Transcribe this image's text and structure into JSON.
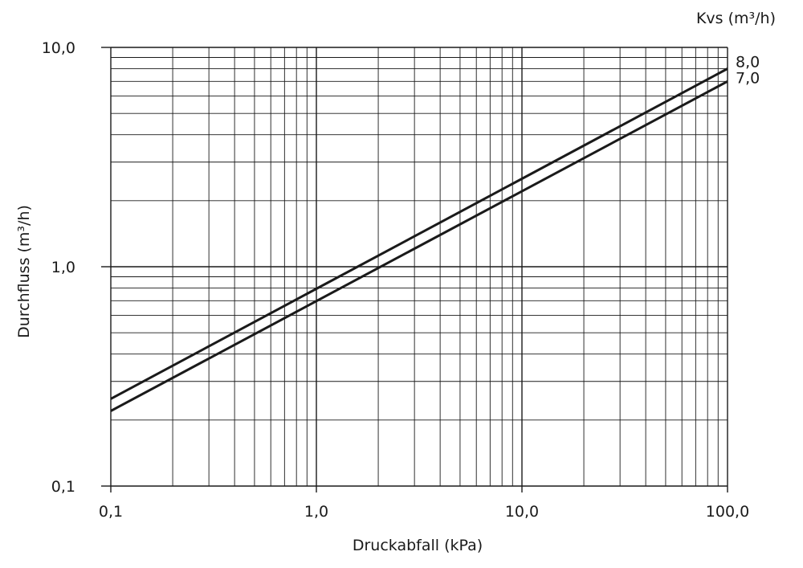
{
  "chart_data": {
    "type": "line",
    "x_scale": "log",
    "y_scale": "log",
    "xlim": [
      0.1,
      100.0
    ],
    "ylim": [
      0.1,
      10.0
    ],
    "grid": true,
    "xlabel": "Druckabfall (kPa)",
    "ylabel": "Durchfluss (m³/h)",
    "x_tick_labels": [
      "0,1",
      "1,0",
      "10,0",
      "100,0"
    ],
    "x_ticks": [
      0.1,
      1.0,
      10.0,
      100.0
    ],
    "y_tick_labels": [
      "0,1",
      "1,0",
      "10,0"
    ],
    "y_ticks": [
      0.1,
      1.0,
      10.0
    ],
    "series_legend_title": "Kvs (m³/h)",
    "series": [
      {
        "name": "8,0",
        "kvs": 8.0,
        "x": [
          0.1,
          100.0
        ],
        "y": [
          0.25,
          8.0
        ]
      },
      {
        "name": "7,0",
        "kvs": 7.0,
        "x": [
          0.1,
          100.0
        ],
        "y": [
          0.22,
          7.0
        ]
      }
    ],
    "line_color": "#1a1a1a",
    "grid_color": "#1a1a1a"
  }
}
